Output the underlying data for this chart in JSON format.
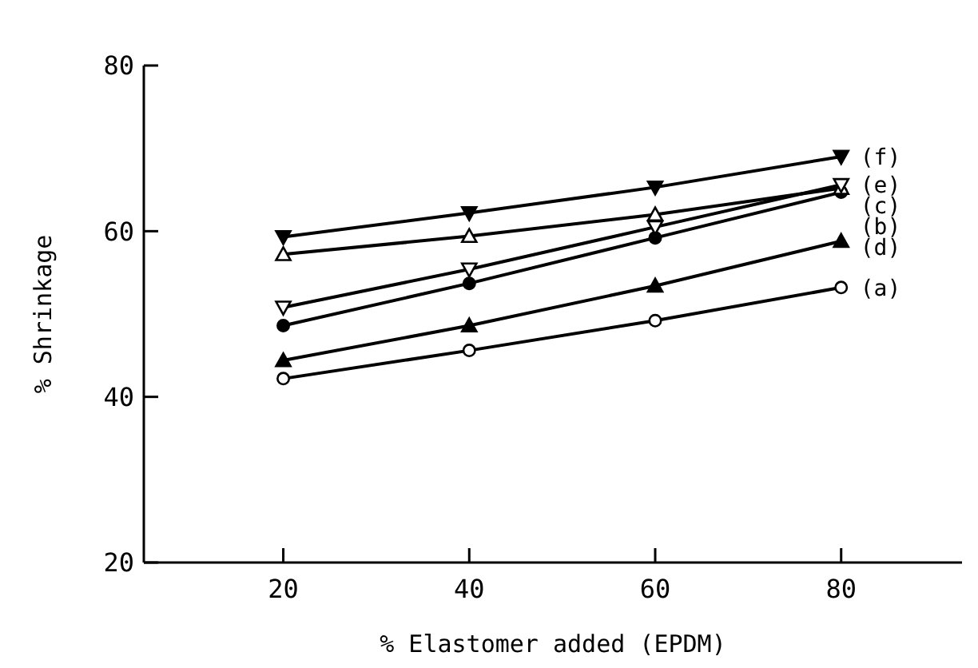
{
  "chart_data": {
    "type": "line",
    "xlabel": "% Elastomer added (EPDM)",
    "ylabel": "% Shrinkage",
    "x": [
      20,
      40,
      60,
      80
    ],
    "xlim": [
      5,
      93
    ],
    "xticks": [
      20,
      40,
      60,
      80
    ],
    "ylim": [
      20,
      80
    ],
    "yticks": [
      20,
      40,
      60,
      80
    ],
    "grid": false,
    "series": [
      {
        "name": "(a)",
        "color": "#000000",
        "marker": "circle-open",
        "values": [
          42.2,
          45.6,
          49.2,
          53.2
        ]
      },
      {
        "name": "(b)",
        "color": "#000000",
        "marker": "circle",
        "values": [
          48.6,
          53.7,
          59.2,
          64.7
        ]
      },
      {
        "name": "(c)",
        "color": "#000000",
        "marker": "triangle-open",
        "values": [
          57.2,
          59.4,
          62,
          65.2
        ]
      },
      {
        "name": "(d)",
        "color": "#000000",
        "marker": "triangle",
        "values": [
          44.4,
          48.6,
          53.4,
          58.8
        ]
      },
      {
        "name": "(e)",
        "color": "#000000",
        "marker": "triangle-down-open",
        "values": [
          50.8,
          55.4,
          60.5,
          65.6
        ]
      },
      {
        "name": "(f)",
        "color": "#000000",
        "marker": "triangle-down",
        "values": [
          59.3,
          62.2,
          65.3,
          69
        ]
      }
    ]
  }
}
